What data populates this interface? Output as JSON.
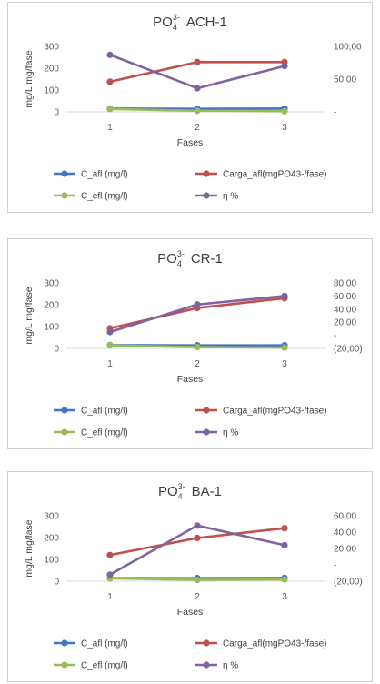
{
  "chart_data": [
    {
      "type": "line",
      "title_main": "PO",
      "title_sub": "4",
      "title_sup": "3-",
      "title_rest": "ACH-1",
      "xlabel": "Fases",
      "ylabel": "mg/L mg/fase",
      "x": [
        "1",
        "2",
        "3"
      ],
      "ylim": [
        0,
        300
      ],
      "y_ticks": [
        "300",
        "200",
        "100",
        "0"
      ],
      "y2lim": [
        0,
        100
      ],
      "y2_tick_values": [
        100,
        50,
        0
      ],
      "y2_ticks": [
        "100,00",
        "50,00",
        "-"
      ],
      "series": [
        {
          "name": "C_afl (mg/l)",
          "color": "#4472C4",
          "axis": "left",
          "values": [
            15,
            14,
            15
          ]
        },
        {
          "name": "Carga_afl(mgPO43-/fase)",
          "color": "#C0504D",
          "axis": "left",
          "values": [
            138,
            228,
            228
          ]
        },
        {
          "name": "C_efl (mg/l)",
          "color": "#9BBB59",
          "axis": "left",
          "values": [
            13,
            5,
            3
          ]
        },
        {
          "name": "η %",
          "color": "#8064A2",
          "axis": "right",
          "values": [
            87,
            36,
            70
          ]
        }
      ]
    },
    {
      "type": "line",
      "title_main": "PO",
      "title_sub": "4",
      "title_sup": "3-",
      "title_rest": "CR-1",
      "xlabel": "Fases",
      "ylabel": "mg/L mg/fase",
      "x": [
        "1",
        "2",
        "3"
      ],
      "ylim": [
        0,
        300
      ],
      "y_ticks": [
        "300",
        "200",
        "100",
        "0"
      ],
      "y2lim": [
        -20,
        80
      ],
      "y2_tick_values": [
        80,
        60,
        40,
        20,
        0,
        -20
      ],
      "y2_ticks": [
        "80,00",
        "60,00",
        "40,00",
        "20,00",
        "-",
        "(20,00)"
      ],
      "series": [
        {
          "name": "C_afl (mg/l)",
          "color": "#4472C4",
          "axis": "left",
          "values": [
            15,
            14,
            14
          ]
        },
        {
          "name": "Carga_afl(mgPO43-/fase)",
          "color": "#C0504D",
          "axis": "left",
          "values": [
            92,
            185,
            230
          ]
        },
        {
          "name": "C_efl (mg/l)",
          "color": "#9BBB59",
          "axis": "left",
          "values": [
            14,
            6,
            4
          ]
        },
        {
          "name": "η %",
          "color": "#8064A2",
          "axis": "right",
          "values": [
            5,
            47,
            60
          ]
        }
      ]
    },
    {
      "type": "line",
      "title_main": "PO",
      "title_sub": "4",
      "title_sup": "3-",
      "title_rest": "BA-1",
      "xlabel": "Fases",
      "ylabel": "mg/L mg/fase",
      "x": [
        "1",
        "2",
        "3"
      ],
      "ylim": [
        0,
        300
      ],
      "y_ticks": [
        "300",
        "200",
        "100",
        "0"
      ],
      "y2lim": [
        -20,
        60
      ],
      "y2_tick_values": [
        60,
        40,
        20,
        0,
        -20
      ],
      "y2_ticks": [
        "60,00",
        "40,00",
        "20,00",
        "-",
        "(20,00)"
      ],
      "series": [
        {
          "name": "C_afl (mg/l)",
          "color": "#4472C4",
          "axis": "left",
          "values": [
            14,
            14,
            15
          ]
        },
        {
          "name": "Carga_afl(mgPO43-/fase)",
          "color": "#C0504D",
          "axis": "left",
          "values": [
            120,
            198,
            243
          ]
        },
        {
          "name": "C_efl (mg/l)",
          "color": "#9BBB59",
          "axis": "left",
          "values": [
            13,
            6,
            8
          ]
        },
        {
          "name": "η %",
          "color": "#8064A2",
          "axis": "right",
          "values": [
            -12,
            48,
            24
          ]
        }
      ]
    }
  ]
}
